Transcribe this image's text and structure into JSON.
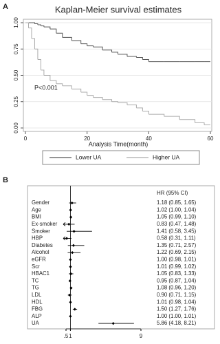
{
  "chart_data": [
    {
      "type": "line",
      "step": true,
      "panel_label": "A",
      "title": "Kaplan-Meier survival estimates",
      "x_label": "Analysis Time(month)",
      "annotation": "P<0.001",
      "grid": true,
      "x": [
        0,
        1,
        2,
        3,
        4,
        5,
        6,
        8,
        10,
        12,
        15,
        18,
        20,
        22,
        25,
        28,
        30,
        33,
        36,
        38,
        40,
        45,
        50,
        55,
        58,
        60
      ],
      "series": [
        {
          "name": "Lower UA",
          "color": "#555555",
          "values": [
            1,
            1,
            1,
            0.99,
            0.98,
            0.97,
            0.96,
            0.94,
            0.9,
            0.86,
            0.83,
            0.8,
            0.78,
            0.77,
            0.74,
            0.72,
            0.7,
            0.68,
            0.67,
            0.65,
            0.63,
            0.63,
            0.63,
            0.63,
            0.63,
            0.63
          ]
        },
        {
          "name": "Higher UA",
          "color": "#aaaaaa",
          "values": [
            1,
            0.95,
            0.85,
            0.75,
            0.65,
            0.55,
            0.5,
            0.45,
            0.42,
            0.4,
            0.37,
            0.34,
            0.31,
            0.29,
            0.27,
            0.25,
            0.24,
            0.22,
            0.19,
            0.16,
            0.13,
            0.11,
            0.08,
            0.05,
            0.03,
            0.03
          ]
        }
      ],
      "xlim": [
        0,
        60
      ],
      "xticks": [
        0,
        20,
        40,
        60
      ],
      "ylim": [
        0,
        1
      ],
      "yticks": [
        {
          "value": 0,
          "label": "0.00"
        },
        {
          "value": 0.25,
          "label": "0.25"
        },
        {
          "value": 0.5,
          "label": "0.50"
        },
        {
          "value": 0.75,
          "label": "0.75"
        },
        {
          "value": 1,
          "label": "1.00"
        }
      ]
    },
    {
      "type": "forest",
      "panel_label": "B",
      "header": "HR (95% CI)",
      "color": "#000000",
      "categories": [
        "Gender",
        "Age",
        "BMI",
        "Ex-smoker",
        "Smoker",
        "HBP",
        "Diabetes",
        "Alcohol",
        "eGFR",
        "Scr",
        "HBAC1",
        "TC",
        "TG",
        "LDL",
        "HDL",
        "FBG",
        "ALP",
        "UA"
      ],
      "values": [
        1.18,
        1.02,
        1.05,
        0.83,
        1.41,
        0.58,
        1.35,
        1.22,
        1.0,
        1.01,
        1.05,
        0.95,
        1.08,
        0.9,
        1.01,
        1.5,
        1.0,
        5.86
      ],
      "lower": [
        0.85,
        1.0,
        0.99,
        0.47,
        0.58,
        0.31,
        0.71,
        0.69,
        0.98,
        0.99,
        0.83,
        0.87,
        0.96,
        0.71,
        0.98,
        1.27,
        1.0,
        4.18
      ],
      "upper": [
        1.65,
        1.04,
        1.1,
        1.48,
        3.45,
        1.11,
        2.57,
        2.15,
        1.01,
        1.02,
        1.33,
        1.04,
        1.2,
        1.15,
        1.04,
        1.76,
        1.01,
        8.21
      ],
      "ci_labels": [
        "1.18 (0.85, 1.65)",
        "1.02 (1.00, 1.04)",
        "1.05 (0.99, 1.10)",
        "0.83 (0.47, 1.48)",
        "1.41 (0.58, 3.45)",
        "0.58 (0.31, 1.11)",
        "1.35 (0.71, 2.57)",
        "1.22 (0.69, 2.15)",
        "1.00 (0.98, 1.01)",
        "1.01 (0.99, 1.02)",
        "1.05 (0.83, 1.33)",
        "0.95 (0.87, 1.04)",
        "1.08 (0.96, 1.20)",
        "0.90 (0.71, 1.15)",
        "1.01 (0.98, 1.04)",
        "1.50 (1.27, 1.76)",
        "1.00 (1.00, 1.01)",
        "5.86 (4.18, 8.21)"
      ],
      "reference": 1,
      "xlim": [
        0.5,
        9
      ],
      "xticks": [
        {
          "value": 0.5,
          "label": ".5"
        },
        1,
        9
      ]
    }
  ]
}
